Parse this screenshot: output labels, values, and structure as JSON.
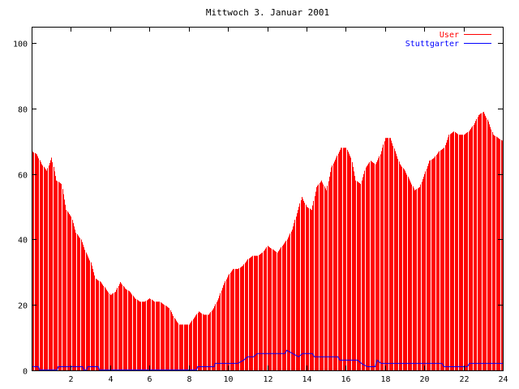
{
  "chart_data": {
    "type": "bar",
    "title": "Mittwoch 3. Januar 2001",
    "xlabel": "",
    "ylabel": "",
    "xlim": [
      0,
      24
    ],
    "ylim": [
      0,
      105
    ],
    "x_ticks": [
      2,
      4,
      6,
      8,
      10,
      12,
      14,
      16,
      18,
      20,
      22,
      24
    ],
    "x_tick_labels": [
      "2",
      "4",
      "6",
      "8",
      "10",
      "12",
      "14",
      "16",
      "18",
      "20",
      "22",
      "24"
    ],
    "y_ticks": [
      0,
      20,
      40,
      60,
      80,
      100
    ],
    "y_tick_labels": [
      "0",
      "20",
      "40",
      "60",
      "80",
      "100"
    ],
    "grid": false,
    "legend_position": "top-right",
    "series": [
      {
        "name": "User",
        "style": "impulses",
        "color": "#ff0000",
        "points": [
          [
            0.0,
            67
          ],
          [
            0.25,
            66
          ],
          [
            0.5,
            63
          ],
          [
            0.75,
            61
          ],
          [
            1.0,
            65
          ],
          [
            1.25,
            58
          ],
          [
            1.5,
            57
          ],
          [
            1.75,
            49
          ],
          [
            2.0,
            47
          ],
          [
            2.25,
            42
          ],
          [
            2.5,
            40
          ],
          [
            2.75,
            36
          ],
          [
            3.0,
            33
          ],
          [
            3.25,
            28
          ],
          [
            3.5,
            27
          ],
          [
            3.75,
            25
          ],
          [
            4.0,
            23
          ],
          [
            4.25,
            24
          ],
          [
            4.5,
            27
          ],
          [
            4.75,
            25
          ],
          [
            5.0,
            24
          ],
          [
            5.25,
            22
          ],
          [
            5.5,
            21
          ],
          [
            5.75,
            21
          ],
          [
            6.0,
            22
          ],
          [
            6.25,
            21
          ],
          [
            6.5,
            21
          ],
          [
            6.75,
            20
          ],
          [
            7.0,
            19
          ],
          [
            7.25,
            16
          ],
          [
            7.5,
            14
          ],
          [
            7.75,
            14
          ],
          [
            8.0,
            14
          ],
          [
            8.25,
            16
          ],
          [
            8.5,
            18
          ],
          [
            8.75,
            17
          ],
          [
            9.0,
            17
          ],
          [
            9.25,
            19
          ],
          [
            9.5,
            22
          ],
          [
            9.75,
            26
          ],
          [
            10.0,
            29
          ],
          [
            10.25,
            31
          ],
          [
            10.5,
            31
          ],
          [
            10.75,
            32
          ],
          [
            11.0,
            34
          ],
          [
            11.25,
            35
          ],
          [
            11.5,
            35
          ],
          [
            11.75,
            36
          ],
          [
            12.0,
            38
          ],
          [
            12.25,
            37
          ],
          [
            12.5,
            36
          ],
          [
            12.75,
            38
          ],
          [
            13.0,
            40
          ],
          [
            13.25,
            43
          ],
          [
            13.5,
            48
          ],
          [
            13.75,
            53
          ],
          [
            14.0,
            50
          ],
          [
            14.25,
            49
          ],
          [
            14.5,
            56
          ],
          [
            14.75,
            58
          ],
          [
            15.0,
            55
          ],
          [
            15.25,
            62
          ],
          [
            15.5,
            65
          ],
          [
            15.75,
            68
          ],
          [
            16.0,
            68
          ],
          [
            16.25,
            65
          ],
          [
            16.5,
            58
          ],
          [
            16.75,
            57
          ],
          [
            17.0,
            62
          ],
          [
            17.25,
            64
          ],
          [
            17.5,
            63
          ],
          [
            17.75,
            66
          ],
          [
            18.0,
            71
          ],
          [
            18.25,
            71
          ],
          [
            18.5,
            67
          ],
          [
            18.75,
            63
          ],
          [
            19.0,
            61
          ],
          [
            19.25,
            58
          ],
          [
            19.5,
            55
          ],
          [
            19.75,
            56
          ],
          [
            20.0,
            60
          ],
          [
            20.25,
            64
          ],
          [
            20.5,
            65
          ],
          [
            20.75,
            67
          ],
          [
            21.0,
            68
          ],
          [
            21.25,
            72
          ],
          [
            21.5,
            73
          ],
          [
            21.75,
            72
          ],
          [
            22.0,
            72
          ],
          [
            22.25,
            73
          ],
          [
            22.5,
            75
          ],
          [
            22.75,
            78
          ],
          [
            23.0,
            79
          ],
          [
            23.25,
            76
          ],
          [
            23.5,
            72
          ],
          [
            23.75,
            71
          ],
          [
            24.0,
            70
          ]
        ]
      },
      {
        "name": "Stuttgarter",
        "style": "lines",
        "color": "#0000ff",
        "points": [
          [
            0.0,
            1
          ],
          [
            0.35,
            1
          ],
          [
            0.4,
            0
          ],
          [
            1.3,
            0
          ],
          [
            1.35,
            1
          ],
          [
            2.6,
            1
          ],
          [
            2.65,
            0
          ],
          [
            2.8,
            0
          ],
          [
            2.85,
            1
          ],
          [
            3.4,
            1
          ],
          [
            3.45,
            0
          ],
          [
            8.4,
            0
          ],
          [
            8.45,
            1
          ],
          [
            9.3,
            1
          ],
          [
            9.35,
            2
          ],
          [
            10.5,
            2
          ],
          [
            10.8,
            3
          ],
          [
            11.0,
            4
          ],
          [
            11.3,
            4
          ],
          [
            11.5,
            5
          ],
          [
            12.9,
            5
          ],
          [
            13.0,
            6
          ],
          [
            13.3,
            5
          ],
          [
            13.6,
            4
          ],
          [
            13.8,
            5
          ],
          [
            14.3,
            5
          ],
          [
            14.4,
            4
          ],
          [
            15.6,
            4
          ],
          [
            15.7,
            3
          ],
          [
            16.6,
            3
          ],
          [
            16.8,
            2
          ],
          [
            17.1,
            1
          ],
          [
            17.5,
            1
          ],
          [
            17.6,
            3
          ],
          [
            17.8,
            2
          ],
          [
            20.9,
            2
          ],
          [
            21.0,
            1
          ],
          [
            22.2,
            1
          ],
          [
            22.3,
            2
          ],
          [
            24.0,
            2
          ]
        ]
      }
    ]
  }
}
